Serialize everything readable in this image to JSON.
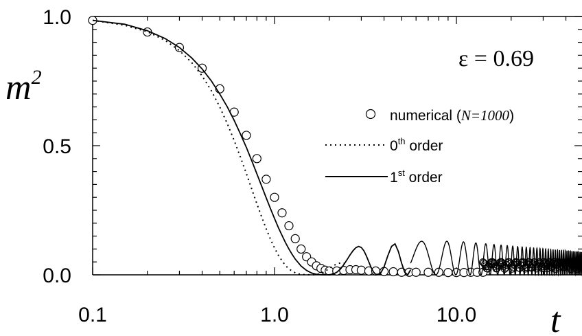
{
  "chart_data": {
    "type": "line",
    "xscale": "log",
    "xlim": [
      0.1,
      50
    ],
    "ylim": [
      0.0,
      1.0
    ],
    "xticks": [
      {
        "value": 0.1,
        "label": "0.1"
      },
      {
        "value": 1.0,
        "label": "1.0"
      },
      {
        "value": 10.0,
        "label": "10.0"
      }
    ],
    "yticks": [
      {
        "value": 0.0,
        "label": "0.0"
      },
      {
        "value": 0.5,
        "label": "0.5"
      },
      {
        "value": 1.0,
        "label": "1.0"
      }
    ],
    "ylabel": {
      "base": "m",
      "sup": "2"
    },
    "xlabel": "t",
    "annotation": "ε = 0.69",
    "legend": {
      "position": "right",
      "entries": [
        {
          "text": "numerical (",
          "ital": "N=1000",
          "tail": ")"
        },
        {
          "text": "0",
          "sup": "th",
          "tail": " order"
        },
        {
          "text": "1",
          "sup": "st",
          "tail": " order"
        }
      ]
    },
    "series": [
      {
        "style": "markers",
        "marker": "circle",
        "x": [
          0.1,
          0.2,
          0.3,
          0.4,
          0.5,
          0.6,
          0.7,
          0.8,
          0.9,
          1.0,
          1.1,
          1.2,
          1.3,
          1.4,
          1.5,
          1.6,
          1.7,
          1.8,
          1.9,
          2.0,
          2.2,
          2.4,
          2.6,
          2.8,
          3.0,
          3.3,
          3.6,
          4.0,
          4.5,
          5.0,
          5.5,
          6.0,
          7.0,
          8.0,
          9.0,
          10.0,
          11.0,
          12.0,
          13.0,
          14.0
        ],
        "y": [
          0.985,
          0.94,
          0.88,
          0.8,
          0.72,
          0.63,
          0.54,
          0.45,
          0.37,
          0.3,
          0.24,
          0.19,
          0.14,
          0.1,
          0.07,
          0.05,
          0.035,
          0.025,
          0.018,
          0.015,
          0.015,
          0.017,
          0.02,
          0.02,
          0.018,
          0.015,
          0.015,
          0.013,
          0.012,
          0.01,
          0.01,
          0.01,
          0.01,
          0.01,
          0.009,
          0.009,
          0.009,
          0.01,
          0.01,
          0.01
        ]
      },
      {
        "style": "dotted",
        "x": [
          0.1,
          0.15,
          0.2,
          0.25,
          0.3,
          0.35,
          0.4,
          0.45,
          0.5,
          0.55,
          0.6,
          0.65,
          0.7,
          0.75,
          0.8,
          0.85,
          0.9,
          0.95,
          1.0,
          1.05,
          1.1,
          1.15,
          1.2,
          1.25,
          1.3,
          1.35,
          1.4,
          1.45,
          1.5,
          1.6,
          1.7,
          1.8,
          1.9,
          2.0,
          2.1,
          2.2,
          2.3,
          2.4,
          2.5
        ],
        "y": [
          0.985,
          0.966,
          0.941,
          0.908,
          0.868,
          0.822,
          0.77,
          0.712,
          0.65,
          0.585,
          0.52,
          0.455,
          0.392,
          0.331,
          0.275,
          0.224,
          0.178,
          0.138,
          0.104,
          0.076,
          0.054,
          0.036,
          0.023,
          0.014,
          0.008,
          0.004,
          0.002,
          0.001,
          0.0005,
          0.0,
          0.001,
          0.006,
          0.014,
          0.025,
          0.035,
          0.042,
          0.046,
          0.045,
          0.04
        ]
      },
      {
        "style": "solid",
        "x": [
          0.1,
          0.15,
          0.2,
          0.25,
          0.3,
          0.35,
          0.4,
          0.45,
          0.5,
          0.55,
          0.6,
          0.65,
          0.7,
          0.75,
          0.8,
          0.85,
          0.9,
          0.95,
          1.0,
          1.05,
          1.1,
          1.15,
          1.2,
          1.25,
          1.3,
          1.4,
          1.5,
          1.6,
          1.7,
          1.8,
          1.9,
          2.0,
          2.1,
          2.2,
          2.3,
          2.4,
          2.5,
          2.6,
          2.7,
          2.8,
          2.9,
          3.0,
          3.1,
          3.2,
          3.3,
          3.4,
          3.5,
          3.6,
          3.8,
          4.0,
          4.2,
          4.4,
          4.6,
          4.8,
          5.0,
          5.2,
          5.4,
          5.6
        ],
        "y": [
          0.985,
          0.97,
          0.945,
          0.915,
          0.88,
          0.84,
          0.797,
          0.75,
          0.7,
          0.65,
          0.598,
          0.545,
          0.493,
          0.441,
          0.391,
          0.343,
          0.298,
          0.256,
          0.218,
          0.183,
          0.152,
          0.124,
          0.1,
          0.079,
          0.061,
          0.034,
          0.017,
          0.007,
          0.002,
          0.0005,
          0.0,
          0.0005,
          0.003,
          0.01,
          0.022,
          0.039,
          0.058,
          0.077,
          0.093,
          0.105,
          0.11,
          0.106,
          0.093,
          0.073,
          0.05,
          0.028,
          0.011,
          0.002,
          0.002,
          0.03,
          0.075,
          0.11,
          0.12,
          0.09,
          0.045,
          0.01,
          0.0,
          0.02
        ]
      }
    ]
  }
}
